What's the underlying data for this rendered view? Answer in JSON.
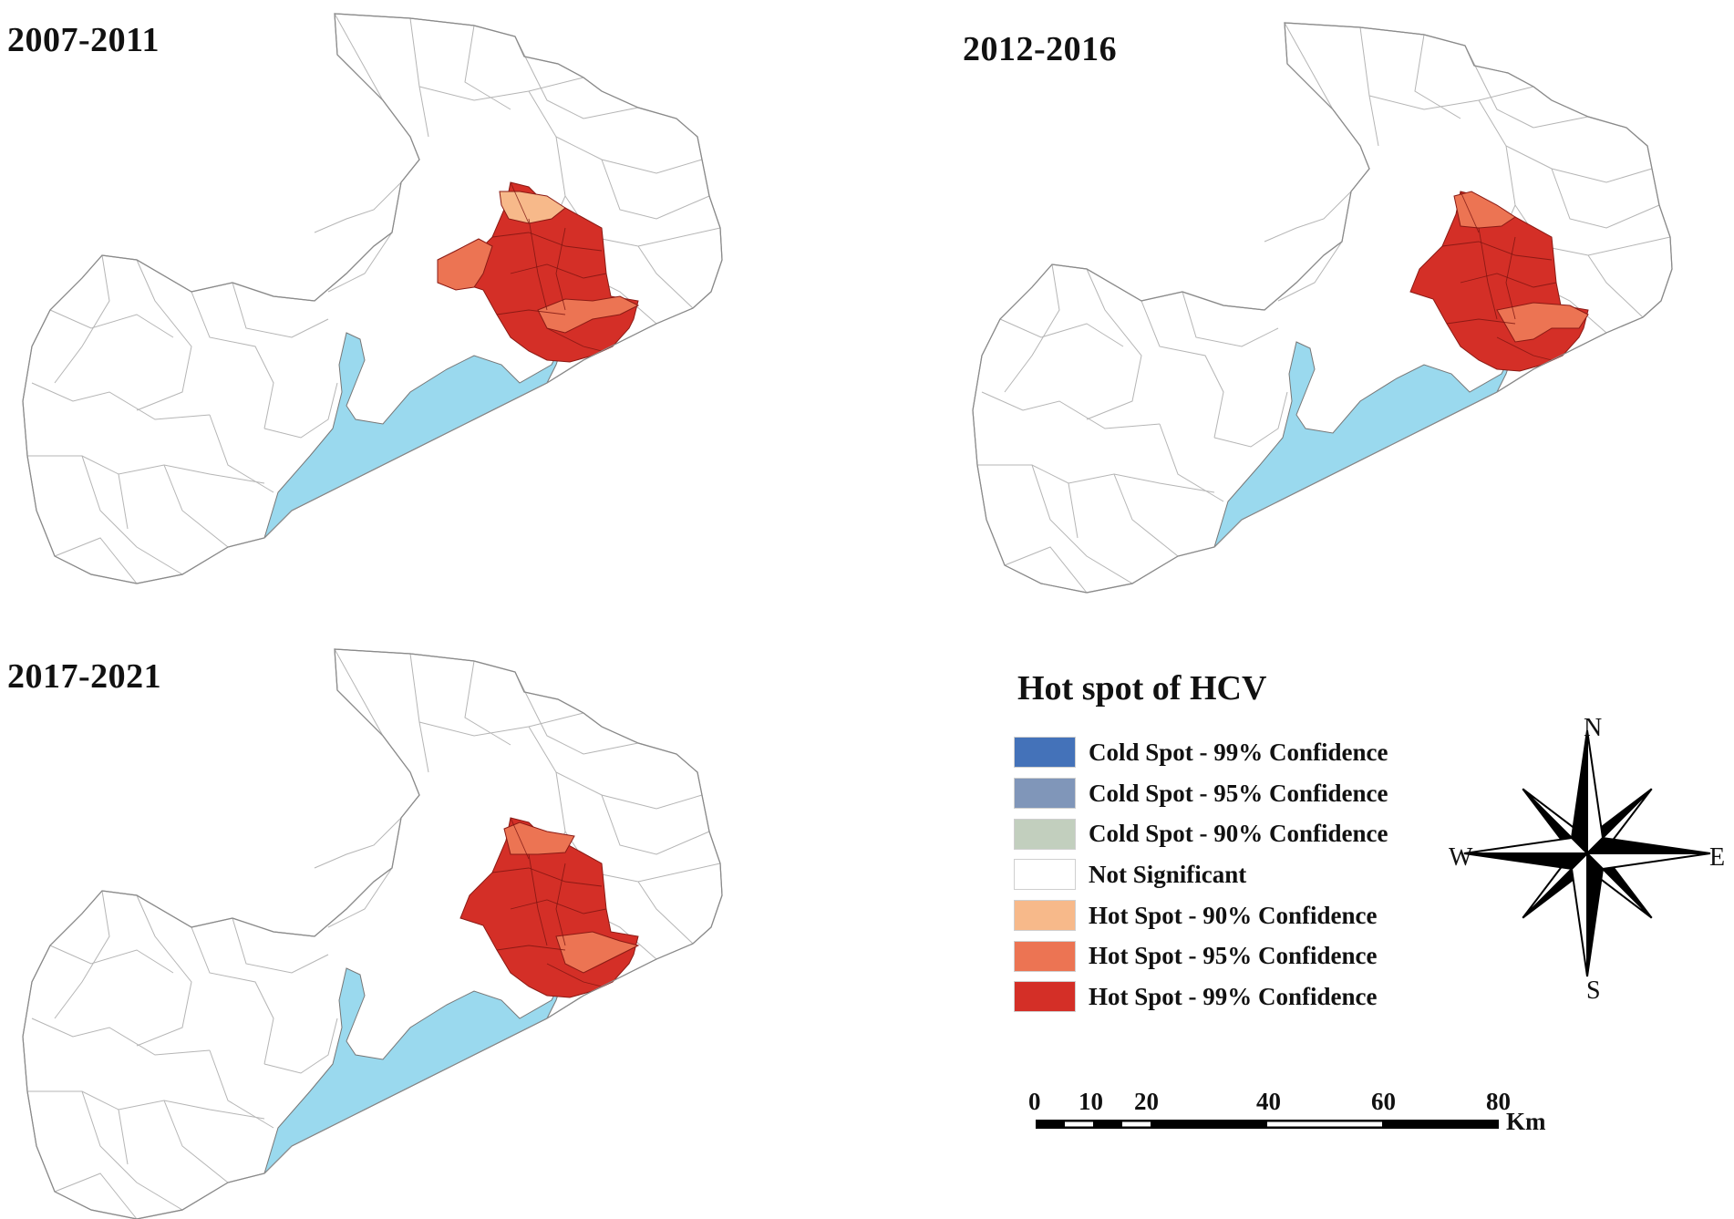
{
  "panels": [
    {
      "label": "2007-2011"
    },
    {
      "label": "2012-2016"
    },
    {
      "label": "2017-2021"
    }
  ],
  "legend": {
    "title": "Hot spot of HCV",
    "items": [
      {
        "label": "Cold Spot - 99% Confidence",
        "color": "#4472b9"
      },
      {
        "label": "Cold Spot - 95% Confidence",
        "color": "#8096b9"
      },
      {
        "label": "Cold Spot - 90% Confidence",
        "color": "#c2cfbe"
      },
      {
        "label": "Not Significant",
        "color": "#ffffff"
      },
      {
        "label": "Hot Spot - 90% Confidence",
        "color": "#f7b98a"
      },
      {
        "label": "Hot Spot - 95% Confidence",
        "color": "#ec7453"
      },
      {
        "label": "Hot Spot - 99% Confidence",
        "color": "#d42f27"
      }
    ]
  },
  "water_color": "#9ad9ee",
  "compass": {
    "n": "N",
    "s": "S",
    "w": "W",
    "e": "E"
  },
  "scale": {
    "ticks": [
      "0",
      "10",
      "20",
      "40",
      "60",
      "80"
    ],
    "unit": "Km"
  }
}
